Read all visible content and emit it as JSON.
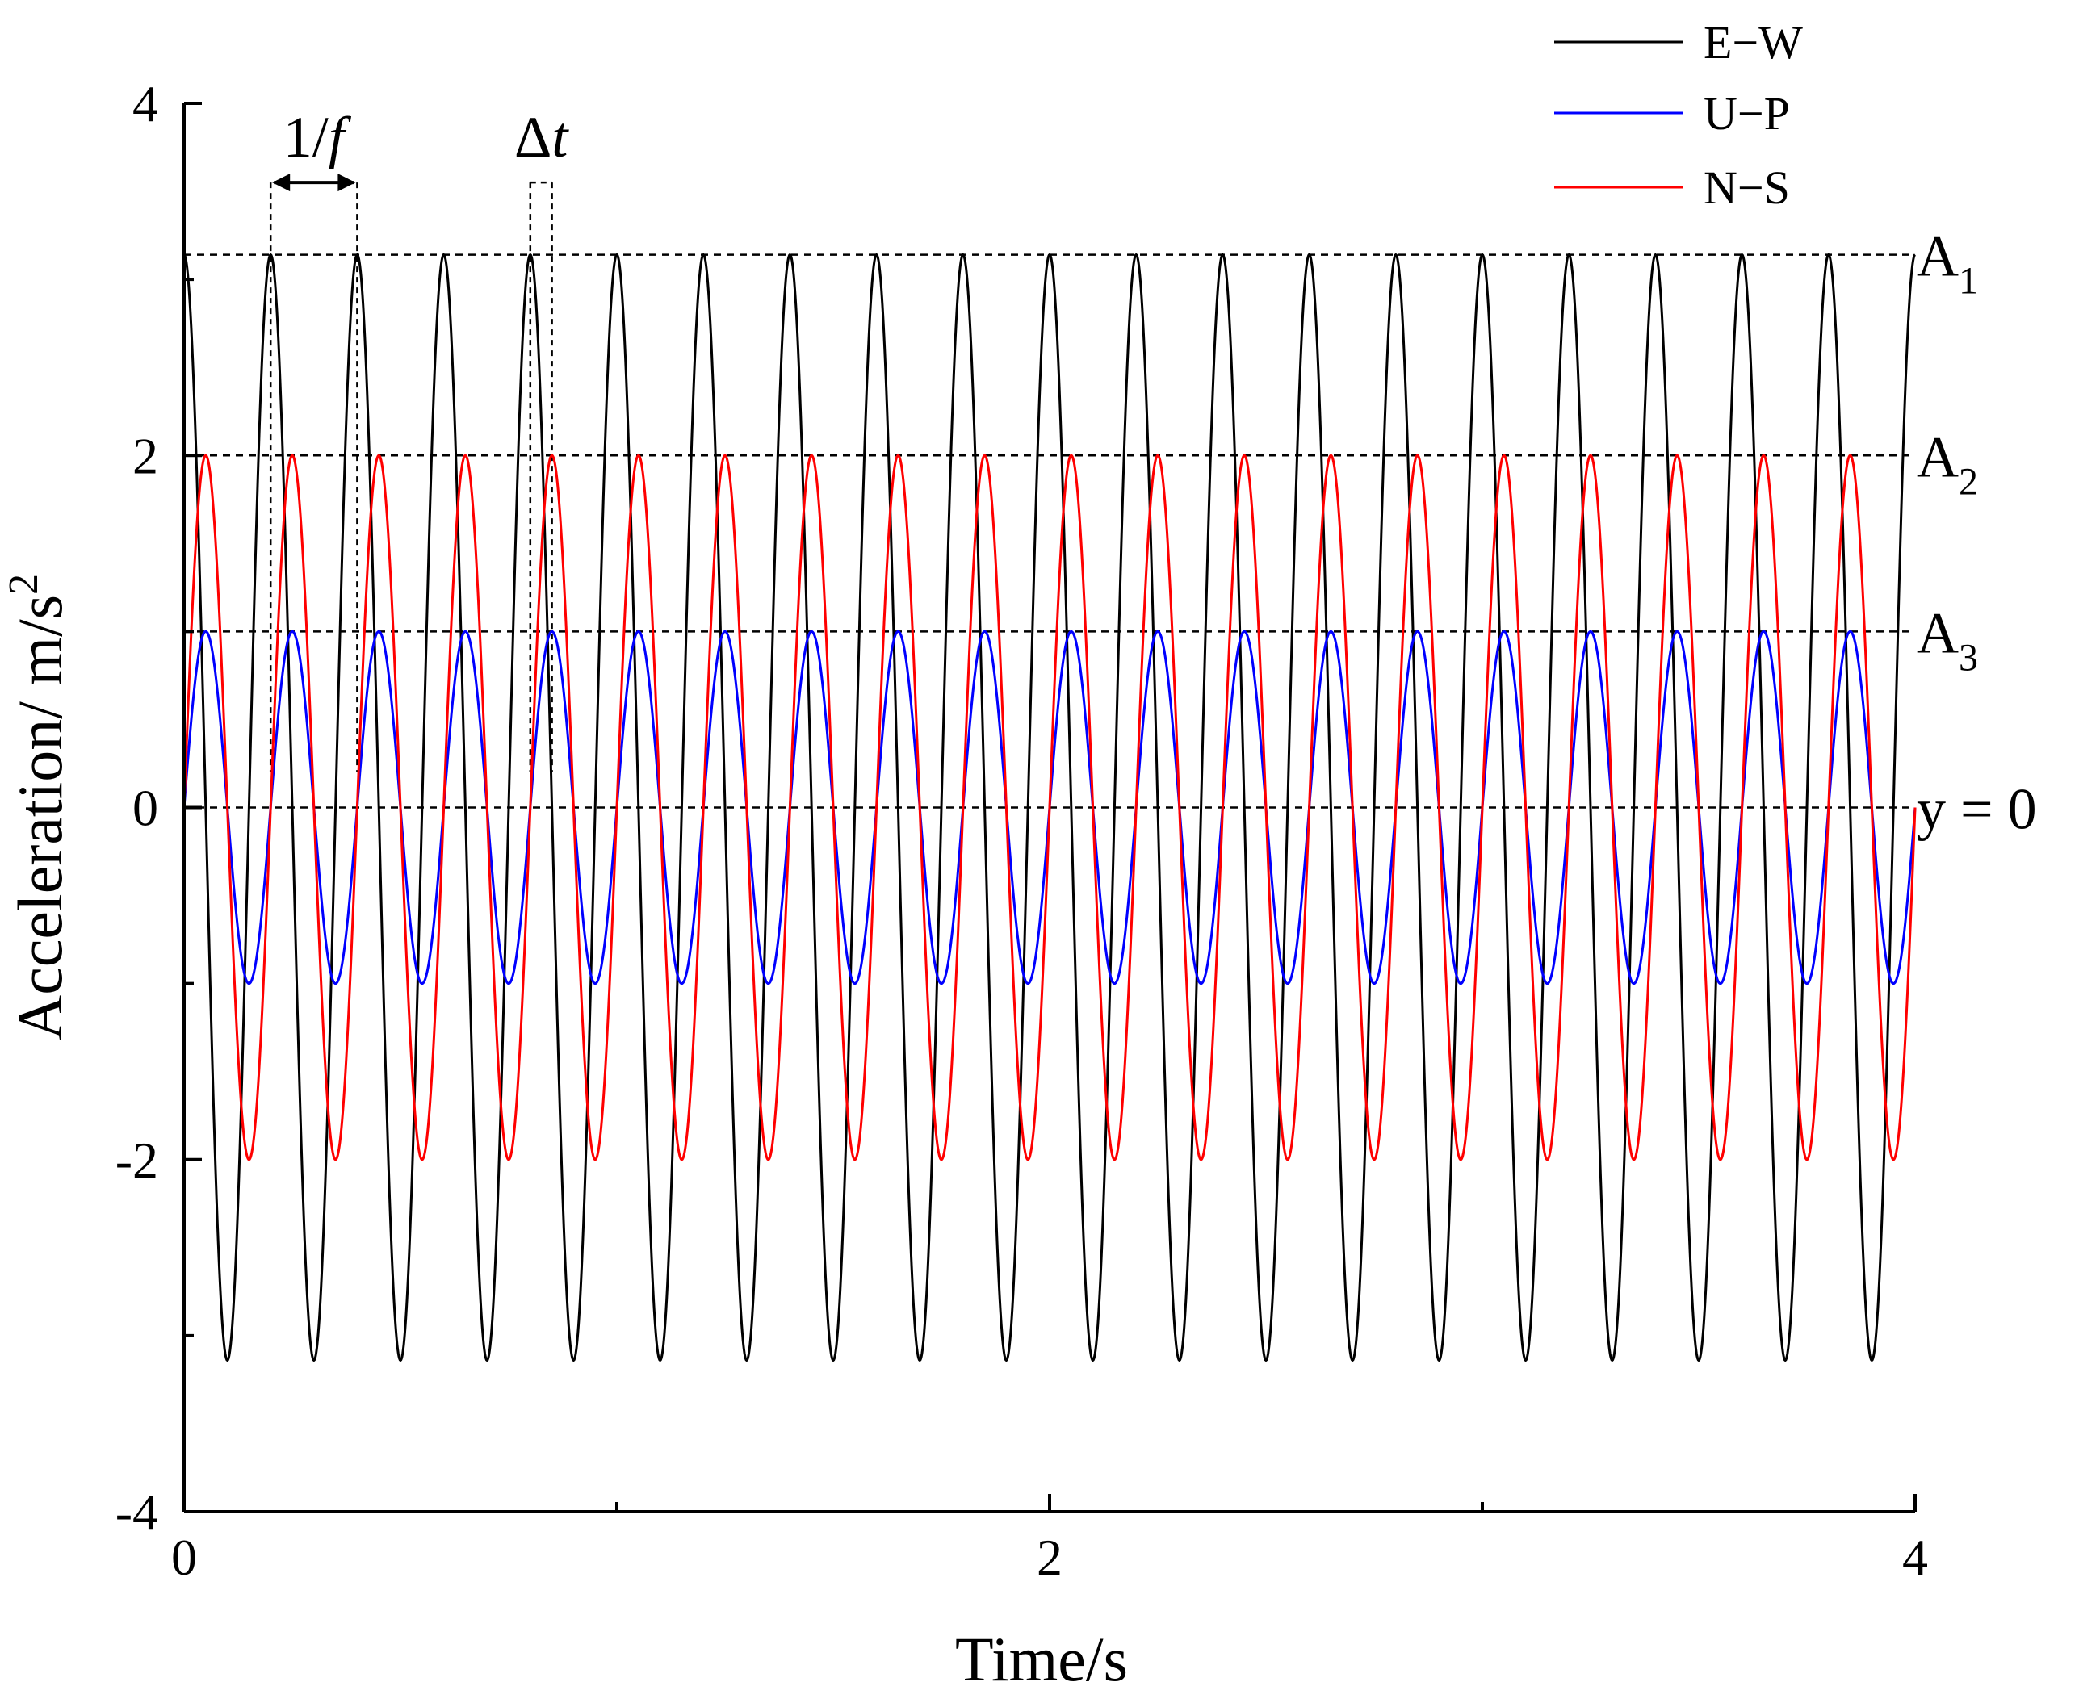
{
  "chart_data": {
    "type": "line",
    "title": "",
    "xlabel": "Time/s",
    "ylabel": "Acceleration/ m/s",
    "ylabel_superscript": "2",
    "xlim": [
      0,
      4
    ],
    "ylim": [
      -4,
      4
    ],
    "x_ticks": [
      0,
      2,
      4
    ],
    "x_tick_labels": [
      "0",
      "2",
      "4"
    ],
    "x_minor_ticks": [
      1,
      3
    ],
    "y_ticks": [
      -4,
      -2,
      0,
      2,
      4
    ],
    "y_tick_labels": [
      "-4",
      "-2",
      "0",
      "2",
      "4"
    ],
    "y_minor_ticks": [
      -3,
      -1,
      1,
      3
    ],
    "grid": false,
    "legend_position": "top-right",
    "frequency_hz": 5,
    "series": [
      {
        "name": "E−W",
        "color": "#000000",
        "amplitude": 3.14,
        "phase_shift_s": 0.0,
        "waveform": "cosine"
      },
      {
        "name": "U−P",
        "color": "#0000ff",
        "amplitude": 1.0,
        "phase_shift_s": 0.0,
        "waveform": "sine"
      },
      {
        "name": "N−S",
        "color": "#ff0000",
        "amplitude": 2.0,
        "phase_shift_s": 0.05,
        "waveform": "cosine"
      }
    ],
    "reference_lines": [
      {
        "y": 3.14,
        "label": "A",
        "subscript": "1"
      },
      {
        "y": 2,
        "label": "A",
        "subscript": "2"
      },
      {
        "y": 1,
        "label": "A",
        "subscript": "3"
      },
      {
        "y": 0,
        "label": "y = 0",
        "subscript": ""
      }
    ],
    "annotations": [
      {
        "name": "period",
        "label_main": "1/",
        "label_italic": "f",
        "x_start": 0.2,
        "x_end": 0.4
      },
      {
        "name": "time-shift",
        "label_main": "Δ",
        "label_italic": "t",
        "x_start": 0.8,
        "x_end": 0.85
      }
    ]
  }
}
